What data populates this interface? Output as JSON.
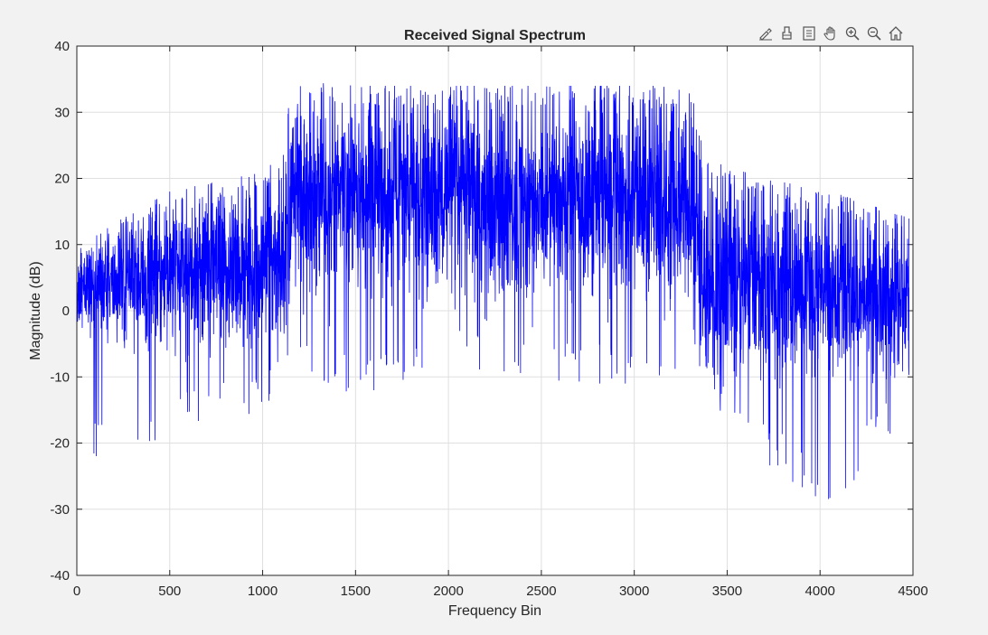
{
  "figure": {
    "background": "#f2f2f2",
    "toolbar": [
      {
        "name": "brush-icon"
      },
      {
        "name": "data-tips-icon"
      },
      {
        "name": "legend-icon"
      },
      {
        "name": "pan-hand-icon"
      },
      {
        "name": "zoom-in-icon"
      },
      {
        "name": "zoom-out-icon"
      },
      {
        "name": "home-icon"
      }
    ]
  },
  "chart_data": {
    "type": "line",
    "title": "Received Signal Spectrum",
    "xlabel": "Frequency Bin",
    "ylabel": "Magnitude (dB)",
    "xlim": [
      0,
      4500
    ],
    "ylim": [
      -40,
      40
    ],
    "xticks": [
      0,
      500,
      1000,
      1500,
      2000,
      2500,
      3000,
      3500,
      4000,
      4500
    ],
    "yticks": [
      -40,
      -30,
      -20,
      -10,
      0,
      10,
      20,
      30,
      40
    ],
    "xtick_labels": [
      "0",
      "500",
      "1000",
      "1500",
      "2000",
      "2500",
      "3000",
      "3500",
      "4000",
      "4500"
    ],
    "ytick_labels": [
      "-40",
      "-30",
      "-20",
      "-10",
      "0",
      "10",
      "20",
      "30",
      "40"
    ],
    "grid": true,
    "line_color": "#0000ff",
    "series": [
      {
        "points_count": 4480,
        "envelope": [
          {
            "x": 0,
            "median": 3,
            "max": 10,
            "min": -24
          },
          {
            "x": 500,
            "median": 5,
            "max": 18,
            "min": -19
          },
          {
            "x": 1000,
            "median": 7,
            "max": 21,
            "min": -15
          },
          {
            "x": 1100,
            "median": 9,
            "max": 24,
            "min": -13
          },
          {
            "x": 1150,
            "median": 17,
            "max": 35,
            "min": -8
          },
          {
            "x": 1500,
            "median": 18,
            "max": 34,
            "min": -13
          },
          {
            "x": 2000,
            "median": 17,
            "max": 34,
            "min": -8
          },
          {
            "x": 2350,
            "median": 16,
            "max": 34,
            "min": -11
          },
          {
            "x": 3000,
            "median": 17,
            "max": 34,
            "min": -11
          },
          {
            "x": 3330,
            "median": 16,
            "max": 34,
            "min": -8
          },
          {
            "x": 3370,
            "median": 5,
            "max": 23,
            "min": -12
          },
          {
            "x": 3700,
            "median": 4,
            "max": 20,
            "min": -23
          },
          {
            "x": 4060,
            "median": 3,
            "max": 18,
            "min": -30
          },
          {
            "x": 4480,
            "median": 1,
            "max": 14,
            "min": -15
          }
        ]
      }
    ]
  }
}
